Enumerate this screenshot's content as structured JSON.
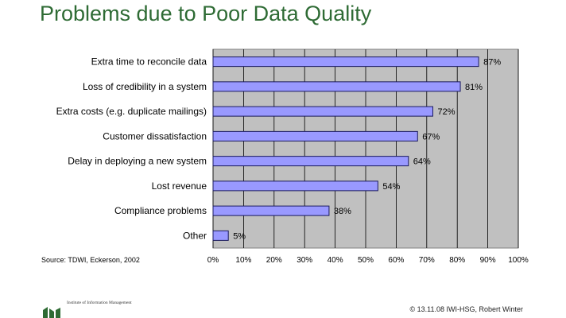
{
  "slide": {
    "title": "Problems due to Poor Data Quality",
    "source": "Source: TDWI, Eckerson, 2002",
    "institute": "Institute of Information Management",
    "copyright": "© 13.11.08 IWI-HSG, Robert Winter"
  },
  "colors": {
    "title": "#2e6b34",
    "plot_background": "#c0c0c0",
    "bar_fill": "#9999ff",
    "bar_stroke": "#1a1a5e",
    "grid": "#000000"
  },
  "chart_data": {
    "type": "bar",
    "orientation": "horizontal",
    "categories": [
      "Extra time to reconcile data",
      "Loss of credibility in a system",
      "Extra costs (e.g. duplicate mailings)",
      "Customer dissatisfaction",
      "Delay in deploying a new system",
      "Lost revenue",
      "Compliance problems",
      "Other"
    ],
    "values": [
      87,
      81,
      72,
      67,
      64,
      54,
      38,
      5
    ],
    "data_labels": [
      "87%",
      "81%",
      "72%",
      "67%",
      "64%",
      "54%",
      "38%",
      "5%"
    ],
    "xlim": [
      0,
      100
    ],
    "x_ticks": [
      "0%",
      "10%",
      "20%",
      "30%",
      "40%",
      "50%",
      "60%",
      "70%",
      "80%",
      "90%",
      "100%"
    ],
    "grid": true,
    "legend": false
  }
}
